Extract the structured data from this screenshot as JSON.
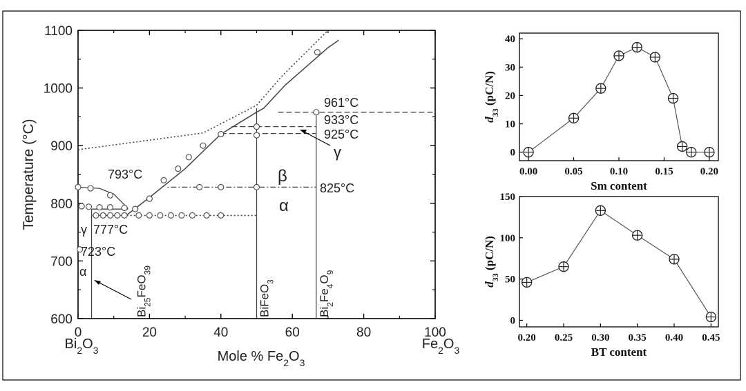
{
  "chart_data": [
    {
      "type": "line",
      "xlabel": "Mole % Fe2O3",
      "ylabel": "Temperature (°C)",
      "xlim": [
        0,
        100
      ],
      "ylim": [
        600,
        1100
      ],
      "x_ticks": [
        "0",
        "20",
        "40",
        "60",
        "80",
        "100"
      ],
      "y_ticks": [
        "600",
        "700",
        "800",
        "900",
        "1000",
        "1100"
      ],
      "x_end_labels": {
        "left": "Bi2O3",
        "right": "Fe2O3"
      },
      "compounds": [
        {
          "name": "Bi25FeO39",
          "x": 3.8
        },
        {
          "name": "BiFeO3",
          "x": 50
        },
        {
          "name": "Bi2Fe4O9",
          "x": 66.7
        }
      ],
      "temperature_labels": [
        "793°C",
        "777°C",
        "723°C",
        "961°C",
        "933°C",
        "925°C",
        "825°C"
      ],
      "phase_labels": [
        "β",
        "α",
        "γ",
        "γ",
        "α"
      ],
      "liquidus_solid": [
        [
          13.5,
          779
        ],
        [
          20,
          810
        ],
        [
          30,
          860
        ],
        [
          40,
          920
        ],
        [
          50,
          958
        ],
        [
          52,
          965
        ],
        [
          58,
          1005
        ],
        [
          70,
          1070
        ],
        [
          73,
          1083
        ]
      ],
      "liquidus_dotted": [
        [
          0,
          893
        ],
        [
          35,
          922
        ],
        [
          50,
          970
        ],
        [
          57,
          1020
        ],
        [
          70,
          1100
        ]
      ],
      "left_liquidus": [
        [
          0,
          828
        ],
        [
          6,
          826
        ],
        [
          10,
          816
        ],
        [
          14,
          791
        ]
      ],
      "eutectic_line": [
        [
          3.8,
          790
        ],
        [
          14,
          790
        ]
      ],
      "line_825_dashed": [
        [
          25,
          828
        ],
        [
          66.7,
          828
        ]
      ],
      "line_933_dashed": [
        [
          43,
          933
        ],
        [
          66.7,
          933
        ]
      ],
      "line_925_dashed": [
        [
          40,
          921
        ],
        [
          66.7,
          921
        ]
      ],
      "line_961_dashed": [
        [
          56,
          958
        ],
        [
          100,
          958
        ]
      ],
      "line_777_dotted": [
        [
          4,
          779
        ],
        [
          50,
          779
        ]
      ],
      "vertical_lines": [
        {
          "x": 3.8,
          "from": 600,
          "to": 790
        },
        {
          "x": 50,
          "from": 600,
          "to": 965
        },
        {
          "x": 66.7,
          "from": 600,
          "to": 958
        }
      ],
      "circles": [
        [
          0,
          828
        ],
        [
          3,
          794
        ],
        [
          6,
          793
        ],
        [
          9,
          793
        ],
        [
          13,
          792
        ],
        [
          3.5,
          826
        ],
        [
          9,
          814
        ],
        [
          1,
          795
        ],
        [
          0.5,
          720
        ],
        [
          5,
          779
        ],
        [
          7,
          779
        ],
        [
          9,
          779
        ],
        [
          11,
          779
        ],
        [
          13,
          779
        ],
        [
          17,
          779
        ],
        [
          20,
          779
        ],
        [
          23,
          779
        ],
        [
          26,
          779
        ],
        [
          29,
          779
        ],
        [
          32,
          779
        ],
        [
          36,
          779
        ],
        [
          40,
          779
        ],
        [
          16,
          790
        ],
        [
          20,
          808
        ],
        [
          24,
          840
        ],
        [
          28,
          860
        ],
        [
          31,
          880
        ],
        [
          35,
          900
        ],
        [
          40,
          920
        ],
        [
          34,
          828
        ],
        [
          40,
          828
        ],
        [
          50,
          828
        ],
        [
          50,
          933
        ],
        [
          50,
          918
        ],
        [
          66.7,
          958
        ],
        [
          67,
          1062
        ]
      ]
    },
    {
      "type": "line",
      "xlabel": "Sm content",
      "ylabel": "d33 (pC/N)",
      "xlim": [
        -0.01,
        0.21
      ],
      "ylim": [
        -3,
        42
      ],
      "x_ticks": [
        "0.00",
        "0.05",
        "0.10",
        "0.15",
        "0.20"
      ],
      "y_ticks": [
        "0",
        "10",
        "20",
        "30",
        "40"
      ],
      "x": [
        0.0,
        0.05,
        0.08,
        0.1,
        0.12,
        0.14,
        0.16,
        0.17,
        0.18,
        0.2
      ],
      "y": [
        0,
        12,
        22.5,
        34,
        37,
        33.5,
        19,
        2,
        0,
        0
      ]
    },
    {
      "type": "line",
      "xlabel": "BT content",
      "ylabel": "d33 (pC/N)",
      "xlim": [
        0.19,
        0.46
      ],
      "ylim": [
        -8,
        150
      ],
      "x_ticks": [
        "0.20",
        "0.25",
        "0.30",
        "0.35",
        "0.40",
        "0.45"
      ],
      "y_ticks": [
        "0",
        "50",
        "100",
        "150"
      ],
      "x": [
        0.2,
        0.25,
        0.3,
        0.35,
        0.4,
        0.45
      ],
      "y": [
        46,
        65,
        133,
        103,
        74,
        4
      ]
    }
  ]
}
